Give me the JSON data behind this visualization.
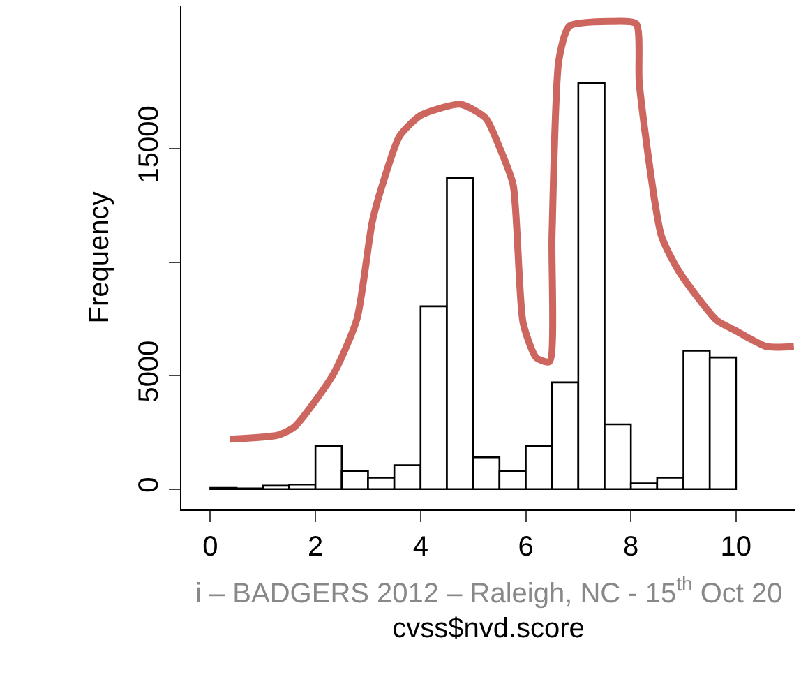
{
  "chart_data": {
    "type": "histogram",
    "xlabel": "cvss$nvd.score",
    "ylabel": "Frequency",
    "bins": [
      0,
      0.5,
      1,
      1.5,
      2,
      2.5,
      3,
      3.5,
      4,
      4.5,
      5,
      5.5,
      6,
      6.5,
      7,
      7.5,
      8,
      8.5,
      9,
      9.5,
      10
    ],
    "values": [
      50,
      30,
      150,
      200,
      1900,
      800,
      500,
      1050,
      8050,
      13700,
      1400,
      800,
      1900,
      4700,
      17900,
      2850,
      250,
      500,
      6100,
      5800
    ],
    "color": "#ffffff",
    "series": [
      {
        "type": "line",
        "color": "#cd665f",
        "x": [
          0.37,
          1.29,
          1.6,
          2.34,
          2.79,
          3.08,
          3.3,
          3.6,
          4.0,
          4.76,
          5.24,
          5.5,
          5.76,
          5.95,
          6.2,
          6.45,
          6.5,
          6.63,
          6.83,
          7.6,
          8.1,
          8.16,
          8.58,
          8.92,
          9.63,
          9.97,
          10.58,
          11.1
        ],
        "values": [
          2200,
          2380,
          2740,
          5060,
          7500,
          11770,
          13600,
          15550,
          16460,
          16950,
          16340,
          15060,
          13410,
          7320,
          5790,
          5610,
          11160,
          18900,
          20400,
          20600,
          20500,
          17870,
          11160,
          9570,
          7440,
          7010,
          6280,
          6280
        ]
      }
    ],
    "xlim": [
      -0.55,
      11.13
    ],
    "ylim": [
      -900,
      21300
    ],
    "xticks": [
      0,
      2,
      4,
      6,
      8,
      10
    ],
    "yticks": [
      0,
      5000,
      {
        "value": 10000,
        "label": null
      },
      15000
    ],
    "annotations": [
      "i – BADGERS 2012 – Raleigh, NC - 15$^{th}$ Oct 20"
    ]
  }
}
